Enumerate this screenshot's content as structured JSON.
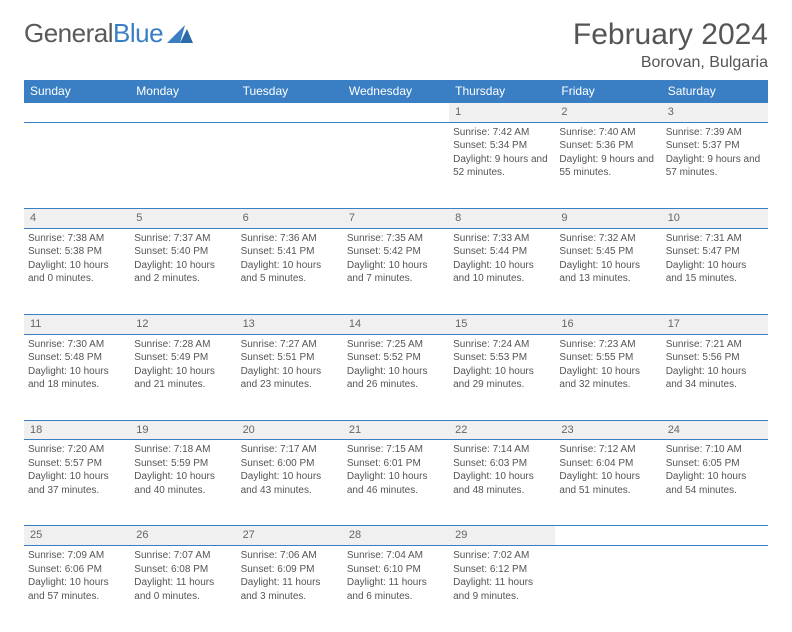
{
  "logo": {
    "text1": "General",
    "text2": "Blue"
  },
  "title": "February 2024",
  "location": "Borovan, Bulgaria",
  "header_bg": "#3a7fc4",
  "day_headers": [
    "Sunday",
    "Monday",
    "Tuesday",
    "Wednesday",
    "Thursday",
    "Friday",
    "Saturday"
  ],
  "weeks": [
    [
      null,
      null,
      null,
      null,
      {
        "n": "1",
        "sr": "7:42 AM",
        "ss": "5:34 PM",
        "dl": "9 hours and 52 minutes."
      },
      {
        "n": "2",
        "sr": "7:40 AM",
        "ss": "5:36 PM",
        "dl": "9 hours and 55 minutes."
      },
      {
        "n": "3",
        "sr": "7:39 AM",
        "ss": "5:37 PM",
        "dl": "9 hours and 57 minutes."
      }
    ],
    [
      {
        "n": "4",
        "sr": "7:38 AM",
        "ss": "5:38 PM",
        "dl": "10 hours and 0 minutes."
      },
      {
        "n": "5",
        "sr": "7:37 AM",
        "ss": "5:40 PM",
        "dl": "10 hours and 2 minutes."
      },
      {
        "n": "6",
        "sr": "7:36 AM",
        "ss": "5:41 PM",
        "dl": "10 hours and 5 minutes."
      },
      {
        "n": "7",
        "sr": "7:35 AM",
        "ss": "5:42 PM",
        "dl": "10 hours and 7 minutes."
      },
      {
        "n": "8",
        "sr": "7:33 AM",
        "ss": "5:44 PM",
        "dl": "10 hours and 10 minutes."
      },
      {
        "n": "9",
        "sr": "7:32 AM",
        "ss": "5:45 PM",
        "dl": "10 hours and 13 minutes."
      },
      {
        "n": "10",
        "sr": "7:31 AM",
        "ss": "5:47 PM",
        "dl": "10 hours and 15 minutes."
      }
    ],
    [
      {
        "n": "11",
        "sr": "7:30 AM",
        "ss": "5:48 PM",
        "dl": "10 hours and 18 minutes."
      },
      {
        "n": "12",
        "sr": "7:28 AM",
        "ss": "5:49 PM",
        "dl": "10 hours and 21 minutes."
      },
      {
        "n": "13",
        "sr": "7:27 AM",
        "ss": "5:51 PM",
        "dl": "10 hours and 23 minutes."
      },
      {
        "n": "14",
        "sr": "7:25 AM",
        "ss": "5:52 PM",
        "dl": "10 hours and 26 minutes."
      },
      {
        "n": "15",
        "sr": "7:24 AM",
        "ss": "5:53 PM",
        "dl": "10 hours and 29 minutes."
      },
      {
        "n": "16",
        "sr": "7:23 AM",
        "ss": "5:55 PM",
        "dl": "10 hours and 32 minutes."
      },
      {
        "n": "17",
        "sr": "7:21 AM",
        "ss": "5:56 PM",
        "dl": "10 hours and 34 minutes."
      }
    ],
    [
      {
        "n": "18",
        "sr": "7:20 AM",
        "ss": "5:57 PM",
        "dl": "10 hours and 37 minutes."
      },
      {
        "n": "19",
        "sr": "7:18 AM",
        "ss": "5:59 PM",
        "dl": "10 hours and 40 minutes."
      },
      {
        "n": "20",
        "sr": "7:17 AM",
        "ss": "6:00 PM",
        "dl": "10 hours and 43 minutes."
      },
      {
        "n": "21",
        "sr": "7:15 AM",
        "ss": "6:01 PM",
        "dl": "10 hours and 46 minutes."
      },
      {
        "n": "22",
        "sr": "7:14 AM",
        "ss": "6:03 PM",
        "dl": "10 hours and 48 minutes."
      },
      {
        "n": "23",
        "sr": "7:12 AM",
        "ss": "6:04 PM",
        "dl": "10 hours and 51 minutes."
      },
      {
        "n": "24",
        "sr": "7:10 AM",
        "ss": "6:05 PM",
        "dl": "10 hours and 54 minutes."
      }
    ],
    [
      {
        "n": "25",
        "sr": "7:09 AM",
        "ss": "6:06 PM",
        "dl": "10 hours and 57 minutes."
      },
      {
        "n": "26",
        "sr": "7:07 AM",
        "ss": "6:08 PM",
        "dl": "11 hours and 0 minutes."
      },
      {
        "n": "27",
        "sr": "7:06 AM",
        "ss": "6:09 PM",
        "dl": "11 hours and 3 minutes."
      },
      {
        "n": "28",
        "sr": "7:04 AM",
        "ss": "6:10 PM",
        "dl": "11 hours and 6 minutes."
      },
      {
        "n": "29",
        "sr": "7:02 AM",
        "ss": "6:12 PM",
        "dl": "11 hours and 9 minutes."
      },
      null,
      null
    ]
  ],
  "labels": {
    "sunrise": "Sunrise: ",
    "sunset": "Sunset: ",
    "daylight": "Daylight: "
  }
}
